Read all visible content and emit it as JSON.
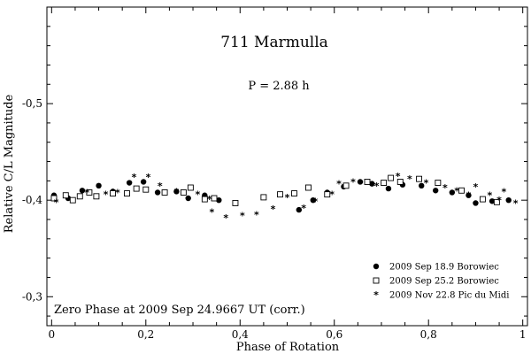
{
  "chart_data": {
    "type": "scatter",
    "title": "711 Marmulla",
    "subtitle": "P = 2.88 h",
    "xlabel": "Phase of Rotation",
    "ylabel": "Relative C/L Magnitude",
    "xlim": [
      -0.01,
      1.01
    ],
    "ylim": [
      -0.6,
      -0.27
    ],
    "y_inverted": true,
    "x_ticks": [
      0,
      0.2,
      0.4,
      0.6,
      0.8,
      1
    ],
    "x_tick_labels": [
      "0",
      "0,2",
      "0,4",
      "0,6",
      "0,8",
      "1"
    ],
    "y_ticks": [
      -0.5,
      -0.4,
      -0.3
    ],
    "y_tick_labels": [
      "-0,5",
      "-0,4",
      "-0,3"
    ],
    "grid": false,
    "legend_position": "bottom-right",
    "annotation": "Zero Phase at 2009 Sep 24.9667 UT (corr.)",
    "series": [
      {
        "name": "2009 Sep 18.9 Borowiec",
        "marker": "filled-circle",
        "points": [
          [
            0.005,
            -0.405
          ],
          [
            0.035,
            -0.402
          ],
          [
            0.065,
            -0.41
          ],
          [
            0.1,
            -0.415
          ],
          [
            0.13,
            -0.409
          ],
          [
            0.165,
            -0.418
          ],
          [
            0.195,
            -0.419
          ],
          [
            0.225,
            -0.408
          ],
          [
            0.265,
            -0.409
          ],
          [
            0.29,
            -0.402
          ],
          [
            0.325,
            -0.405
          ],
          [
            0.355,
            -0.4
          ],
          [
            0.525,
            -0.39
          ],
          [
            0.555,
            -0.4
          ],
          [
            0.585,
            -0.408
          ],
          [
            0.62,
            -0.414
          ],
          [
            0.655,
            -0.419
          ],
          [
            0.68,
            -0.417
          ],
          [
            0.715,
            -0.412
          ],
          [
            0.745,
            -0.416
          ],
          [
            0.785,
            -0.415
          ],
          [
            0.815,
            -0.41
          ],
          [
            0.85,
            -0.408
          ],
          [
            0.885,
            -0.405
          ],
          [
            0.9,
            -0.397
          ],
          [
            0.935,
            -0.399
          ],
          [
            0.97,
            -0.4
          ]
        ]
      },
      {
        "name": "2009 Sep 25.2 Borowiec",
        "marker": "open-square",
        "points": [
          [
            0.005,
            -0.402
          ],
          [
            0.03,
            -0.405
          ],
          [
            0.045,
            -0.4
          ],
          [
            0.06,
            -0.404
          ],
          [
            0.08,
            -0.408
          ],
          [
            0.095,
            -0.404
          ],
          [
            0.13,
            -0.407
          ],
          [
            0.16,
            -0.407
          ],
          [
            0.18,
            -0.412
          ],
          [
            0.2,
            -0.411
          ],
          [
            0.24,
            -0.408
          ],
          [
            0.28,
            -0.408
          ],
          [
            0.295,
            -0.413
          ],
          [
            0.325,
            -0.401
          ],
          [
            0.345,
            -0.402
          ],
          [
            0.39,
            -0.397
          ],
          [
            0.45,
            -0.403
          ],
          [
            0.485,
            -0.406
          ],
          [
            0.515,
            -0.407
          ],
          [
            0.545,
            -0.413
          ],
          [
            0.585,
            -0.406
          ],
          [
            0.625,
            -0.415
          ],
          [
            0.67,
            -0.419
          ],
          [
            0.705,
            -0.418
          ],
          [
            0.72,
            -0.423
          ],
          [
            0.74,
            -0.419
          ],
          [
            0.78,
            -0.422
          ],
          [
            0.82,
            -0.418
          ],
          [
            0.87,
            -0.41
          ],
          [
            0.915,
            -0.401
          ],
          [
            0.945,
            -0.398
          ]
        ]
      },
      {
        "name": "2009 Nov 22.8 Pic du Midi",
        "marker": "asterisk",
        "points": [
          [
            0.01,
            -0.398
          ],
          [
            0.075,
            -0.408
          ],
          [
            0.115,
            -0.406
          ],
          [
            0.14,
            -0.408
          ],
          [
            0.175,
            -0.424
          ],
          [
            0.205,
            -0.424
          ],
          [
            0.23,
            -0.415
          ],
          [
            0.265,
            -0.409
          ],
          [
            0.31,
            -0.406
          ],
          [
            0.335,
            -0.401
          ],
          [
            0.34,
            -0.388
          ],
          [
            0.37,
            -0.382
          ],
          [
            0.405,
            -0.384
          ],
          [
            0.435,
            -0.385
          ],
          [
            0.47,
            -0.391
          ],
          [
            0.5,
            -0.403
          ],
          [
            0.535,
            -0.392
          ],
          [
            0.56,
            -0.399
          ],
          [
            0.595,
            -0.406
          ],
          [
            0.61,
            -0.417
          ],
          [
            0.64,
            -0.419
          ],
          [
            0.69,
            -0.415
          ],
          [
            0.735,
            -0.425
          ],
          [
            0.76,
            -0.422
          ],
          [
            0.795,
            -0.418
          ],
          [
            0.835,
            -0.413
          ],
          [
            0.86,
            -0.41
          ],
          [
            0.885,
            -0.405
          ],
          [
            0.9,
            -0.414
          ],
          [
            0.93,
            -0.405
          ],
          [
            0.95,
            -0.4
          ],
          [
            0.96,
            -0.409
          ],
          [
            0.985,
            -0.397
          ]
        ]
      }
    ]
  }
}
